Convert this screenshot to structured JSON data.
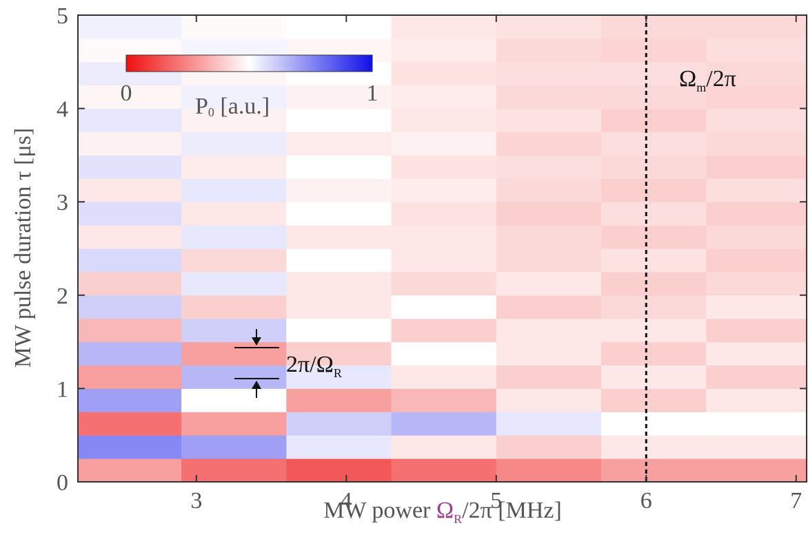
{
  "chart_data": {
    "type": "heatmap",
    "xlabel": [
      "MW power ",
      "Ω",
      "R",
      "/2π [MHz]"
    ],
    "ylabel": "MW pulse duration τ [μs]",
    "xlim": [
      2.21,
      7.07
    ],
    "ylim": [
      0,
      5
    ],
    "xticks": [
      3,
      4,
      5,
      6,
      7
    ],
    "yticks": [
      0,
      1,
      2,
      3,
      4,
      5
    ],
    "x_edges": [
      2.21,
      2.9,
      3.6,
      4.3,
      5.0,
      5.7,
      6.4,
      7.07
    ],
    "y_edges": [
      0,
      0.25,
      0.5,
      0.75,
      1,
      1.25,
      1.5,
      1.75,
      2,
      2.25,
      2.5,
      2.75,
      3,
      3.25,
      3.5,
      3.75,
      4,
      4.25,
      4.5,
      4.75,
      5
    ],
    "z": [
      [
        0.3,
        0.2,
        0.15,
        0.2,
        0.25,
        0.3,
        0.3
      ],
      [
        0.75,
        0.7,
        0.55,
        0.45,
        0.4,
        0.45,
        0.45
      ],
      [
        0.2,
        0.3,
        0.6,
        0.65,
        0.55,
        0.5,
        0.5
      ],
      [
        0.7,
        0.5,
        0.3,
        0.35,
        0.45,
        0.4,
        0.45
      ],
      [
        0.3,
        0.65,
        0.55,
        0.45,
        0.4,
        0.45,
        0.4
      ],
      [
        0.65,
        0.3,
        0.4,
        0.5,
        0.45,
        0.4,
        0.45
      ],
      [
        0.35,
        0.6,
        0.5,
        0.4,
        0.45,
        0.45,
        0.4
      ],
      [
        0.6,
        0.4,
        0.45,
        0.5,
        0.4,
        0.42,
        0.45
      ],
      [
        0.4,
        0.55,
        0.45,
        0.42,
        0.45,
        0.4,
        0.42
      ],
      [
        0.58,
        0.42,
        0.5,
        0.45,
        0.42,
        0.44,
        0.4
      ],
      [
        0.45,
        0.55,
        0.45,
        0.45,
        0.42,
        0.4,
        0.42
      ],
      [
        0.57,
        0.45,
        0.5,
        0.44,
        0.4,
        0.43,
        0.4
      ],
      [
        0.45,
        0.55,
        0.47,
        0.46,
        0.42,
        0.4,
        0.43
      ],
      [
        0.56,
        0.46,
        0.5,
        0.44,
        0.43,
        0.42,
        0.4
      ],
      [
        0.47,
        0.54,
        0.46,
        0.47,
        0.41,
        0.43,
        0.42
      ],
      [
        0.55,
        0.47,
        0.5,
        0.45,
        0.44,
        0.4,
        0.43
      ],
      [
        0.48,
        0.53,
        0.47,
        0.46,
        0.42,
        0.42,
        0.41
      ],
      [
        0.54,
        0.48,
        0.5,
        0.44,
        0.43,
        0.43,
        0.42
      ],
      [
        0.49,
        0.52,
        0.48,
        0.46,
        0.42,
        0.41,
        0.43
      ],
      [
        0.53,
        0.49,
        0.5,
        0.45,
        0.44,
        0.42,
        0.42
      ]
    ],
    "zlim": [
      0,
      1
    ],
    "zticks": [
      0,
      1
    ],
    "colormap": [
      "#ee1010",
      "#ffffff",
      "#1010e8"
    ],
    "colorbar_label": [
      "P",
      "0",
      " [a.u.]"
    ],
    "vline": 6,
    "annotations": [
      [
        "2π/Ω",
        "R"
      ],
      [
        "Ω",
        "m",
        "/2π"
      ]
    ]
  }
}
